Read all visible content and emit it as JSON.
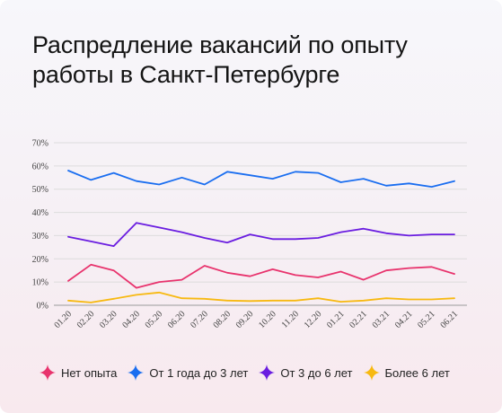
{
  "header": {
    "title_line1": "Распредление вакансий по опыту",
    "title_line2": "работы в Санкт-Петербурге"
  },
  "chart_data": {
    "type": "line",
    "title": "Распредление вакансий по опыту работы в Санкт-Петербурге",
    "categories": [
      "01.20",
      "02.20",
      "03.20",
      "04.20",
      "05.20",
      "06.20",
      "07.20",
      "08.20",
      "09.20",
      "10.20",
      "11.20",
      "12.20",
      "01.21",
      "02.21",
      "03.21",
      "04.21",
      "05.21",
      "06.21"
    ],
    "yticks": [
      "0%",
      "10%",
      "20%",
      "30%",
      "40%",
      "50%",
      "60%",
      "70%"
    ],
    "ylim": [
      0,
      70
    ],
    "grid": true,
    "legend_position": "bottom",
    "series": [
      {
        "name": "Нет опыта",
        "color": "#e8336d",
        "values": [
          10.5,
          17.5,
          15,
          7.5,
          10,
          11,
          17,
          14,
          12.5,
          15.5,
          13,
          12,
          14.5,
          11,
          15,
          16,
          16.5,
          13.5
        ]
      },
      {
        "name": "От 1 года до 3 лет",
        "color": "#1a6ef0",
        "values": [
          58,
          54,
          57,
          53.5,
          52,
          55,
          52,
          57.5,
          56,
          54.5,
          57.5,
          57,
          53,
          54.5,
          51.5,
          52.5,
          51,
          53.5
        ]
      },
      {
        "name": "От 3 до 6 лет",
        "color": "#6a1de0",
        "values": [
          29.5,
          27.5,
          25.5,
          35.5,
          33.5,
          31.5,
          29,
          27,
          30.5,
          28.5,
          28.5,
          29,
          31.5,
          33,
          31,
          30,
          30.5,
          30.5
        ]
      },
      {
        "name": "Более 6 лет",
        "color": "#f7b911",
        "values": [
          2,
          1.2,
          2.8,
          4.5,
          5.5,
          3,
          2.8,
          2,
          1.8,
          2,
          2,
          3,
          1.5,
          2,
          3,
          2.5,
          2.5,
          3
        ]
      }
    ]
  }
}
